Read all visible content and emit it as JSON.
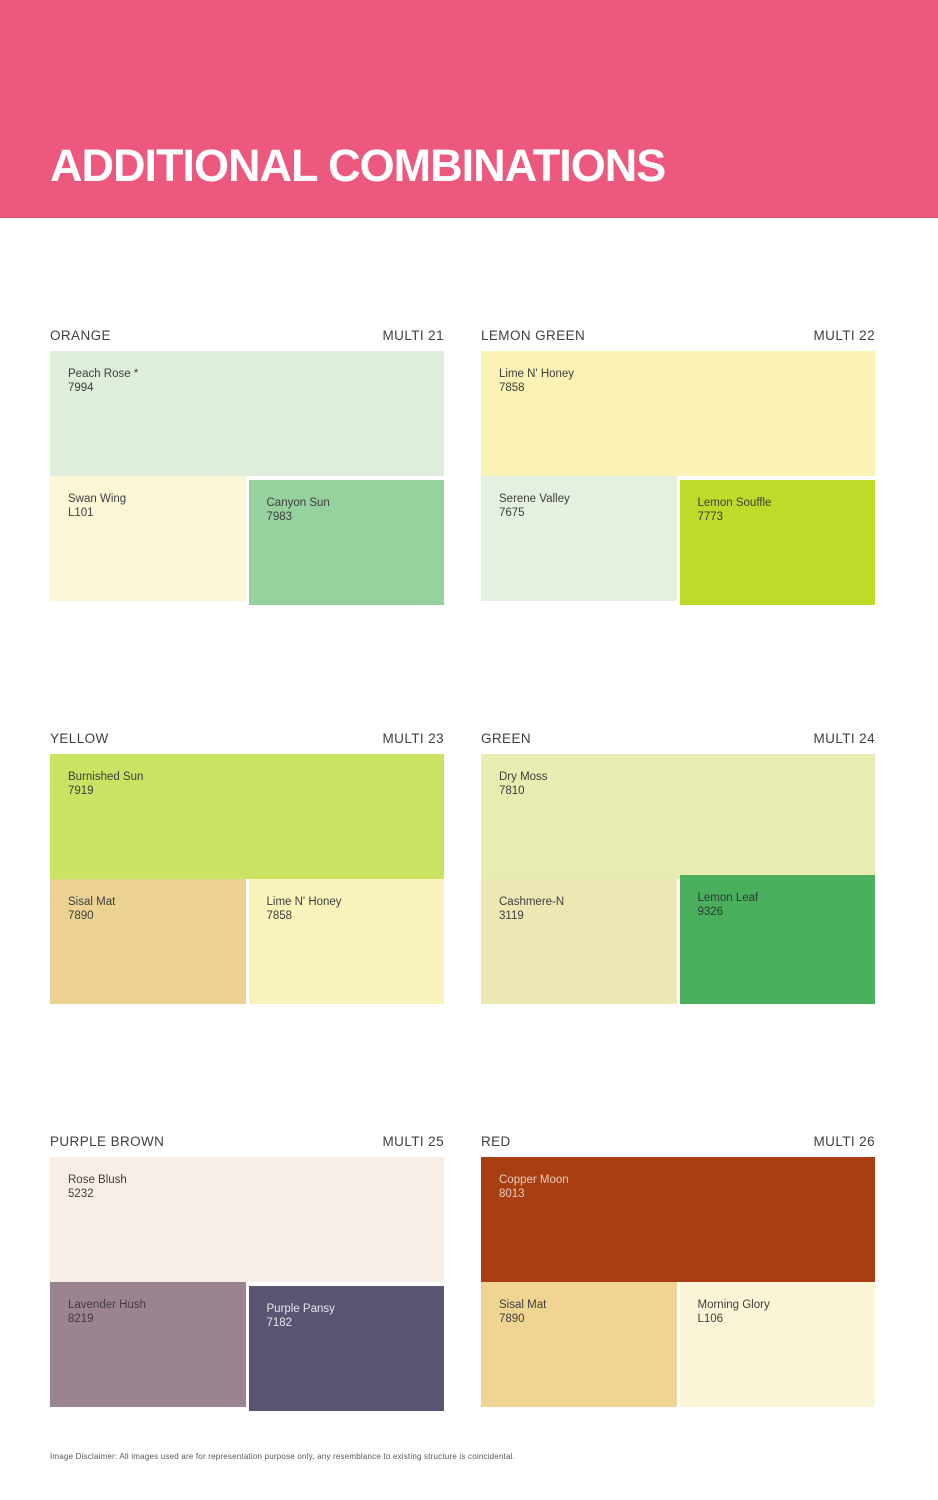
{
  "header": {
    "title": "ADDITIONAL COMBINATIONS",
    "background": "#ED597E",
    "text_color": "#FFFFFF"
  },
  "cards": [
    {
      "title": "ORANGE",
      "code": "MULTI 21",
      "top": {
        "name": "Peach Rose *",
        "code": "7994",
        "color": "#DFEEDB",
        "text": "#3E3E3D"
      },
      "bottom_left": {
        "name": "Swan Wing",
        "code": "L101",
        "color": "#FBF7D6",
        "text": "#3E3E3D"
      },
      "bottom_right": {
        "name": "Canyon Sun",
        "code": "7983",
        "color": "#96D29D",
        "text": "#3E3E3D"
      }
    },
    {
      "title": "LEMON GREEN",
      "code": "MULTI 22",
      "top": {
        "name": "Lime N' Honey",
        "code": "7858",
        "color": "#FAF3B5",
        "text": "#3E3E3D"
      },
      "bottom_left": {
        "name": "Serene Valley",
        "code": "7675",
        "color": "#E5F1E0",
        "text": "#3E3E3D"
      },
      "bottom_right": {
        "name": "Lemon Souffle",
        "code": "7773",
        "color": "#BCDC29",
        "text": "#3E3E3D"
      }
    },
    {
      "title": "YELLOW",
      "code": "MULTI 23",
      "top": {
        "name": "Burnished Sun",
        "code": "7919",
        "color": "#CBE363",
        "text": "#3E3E3D"
      },
      "bottom_left": {
        "name": "Sisal Mat",
        "code": "7890",
        "color": "#EBD293",
        "text": "#3E3E3D"
      },
      "bottom_right": {
        "name": "Lime N' Honey",
        "code": "7858",
        "color": "#FAF3BC",
        "text": "#3E3E3D"
      }
    },
    {
      "title": "GREEN",
      "code": "MULTI 24",
      "top": {
        "name": "Dry Moss",
        "code": "7810",
        "color": "#E9ECB0",
        "text": "#3E3E3D"
      },
      "bottom_left": {
        "name": "Cashmere-N",
        "code": "3119",
        "color": "#EDE7B4",
        "text": "#3E3E3D"
      },
      "bottom_right": {
        "name": "Lemon Leaf",
        "code": "9326",
        "color": "#49AF5D",
        "text": "#2F3B31"
      }
    },
    {
      "title": "PURPLE BROWN",
      "code": "MULTI 25",
      "top": {
        "name": "Rose Blush",
        "code": "5232",
        "color": "#F7EFE7",
        "text": "#3E3E3D"
      },
      "bottom_left": {
        "name": "Lavender Hush",
        "code": "8219",
        "color": "#9A8491",
        "text": "#443A43"
      },
      "bottom_right": {
        "name": "Purple Pansy",
        "code": "7182",
        "color": "#5B5472",
        "text": "#E9E5EE"
      }
    },
    {
      "title": "RED",
      "code": "MULTI 26",
      "top": {
        "name": "Copper Moon",
        "code": "8013",
        "color": "#A83E12",
        "text": "#EECDBC"
      },
      "bottom_left": {
        "name": "Sisal Mat",
        "code": "7890",
        "color": "#EFD492",
        "text": "#3E3E3D"
      },
      "bottom_right": {
        "name": "Morning Glory",
        "code": "L106",
        "color": "#FBF5D8",
        "text": "#3E3E3D"
      }
    }
  ],
  "footer": {
    "disclaimer": "Image Disclaimer: All images used are for representation purpose only, any resemblance to existing structure is coincidental."
  }
}
